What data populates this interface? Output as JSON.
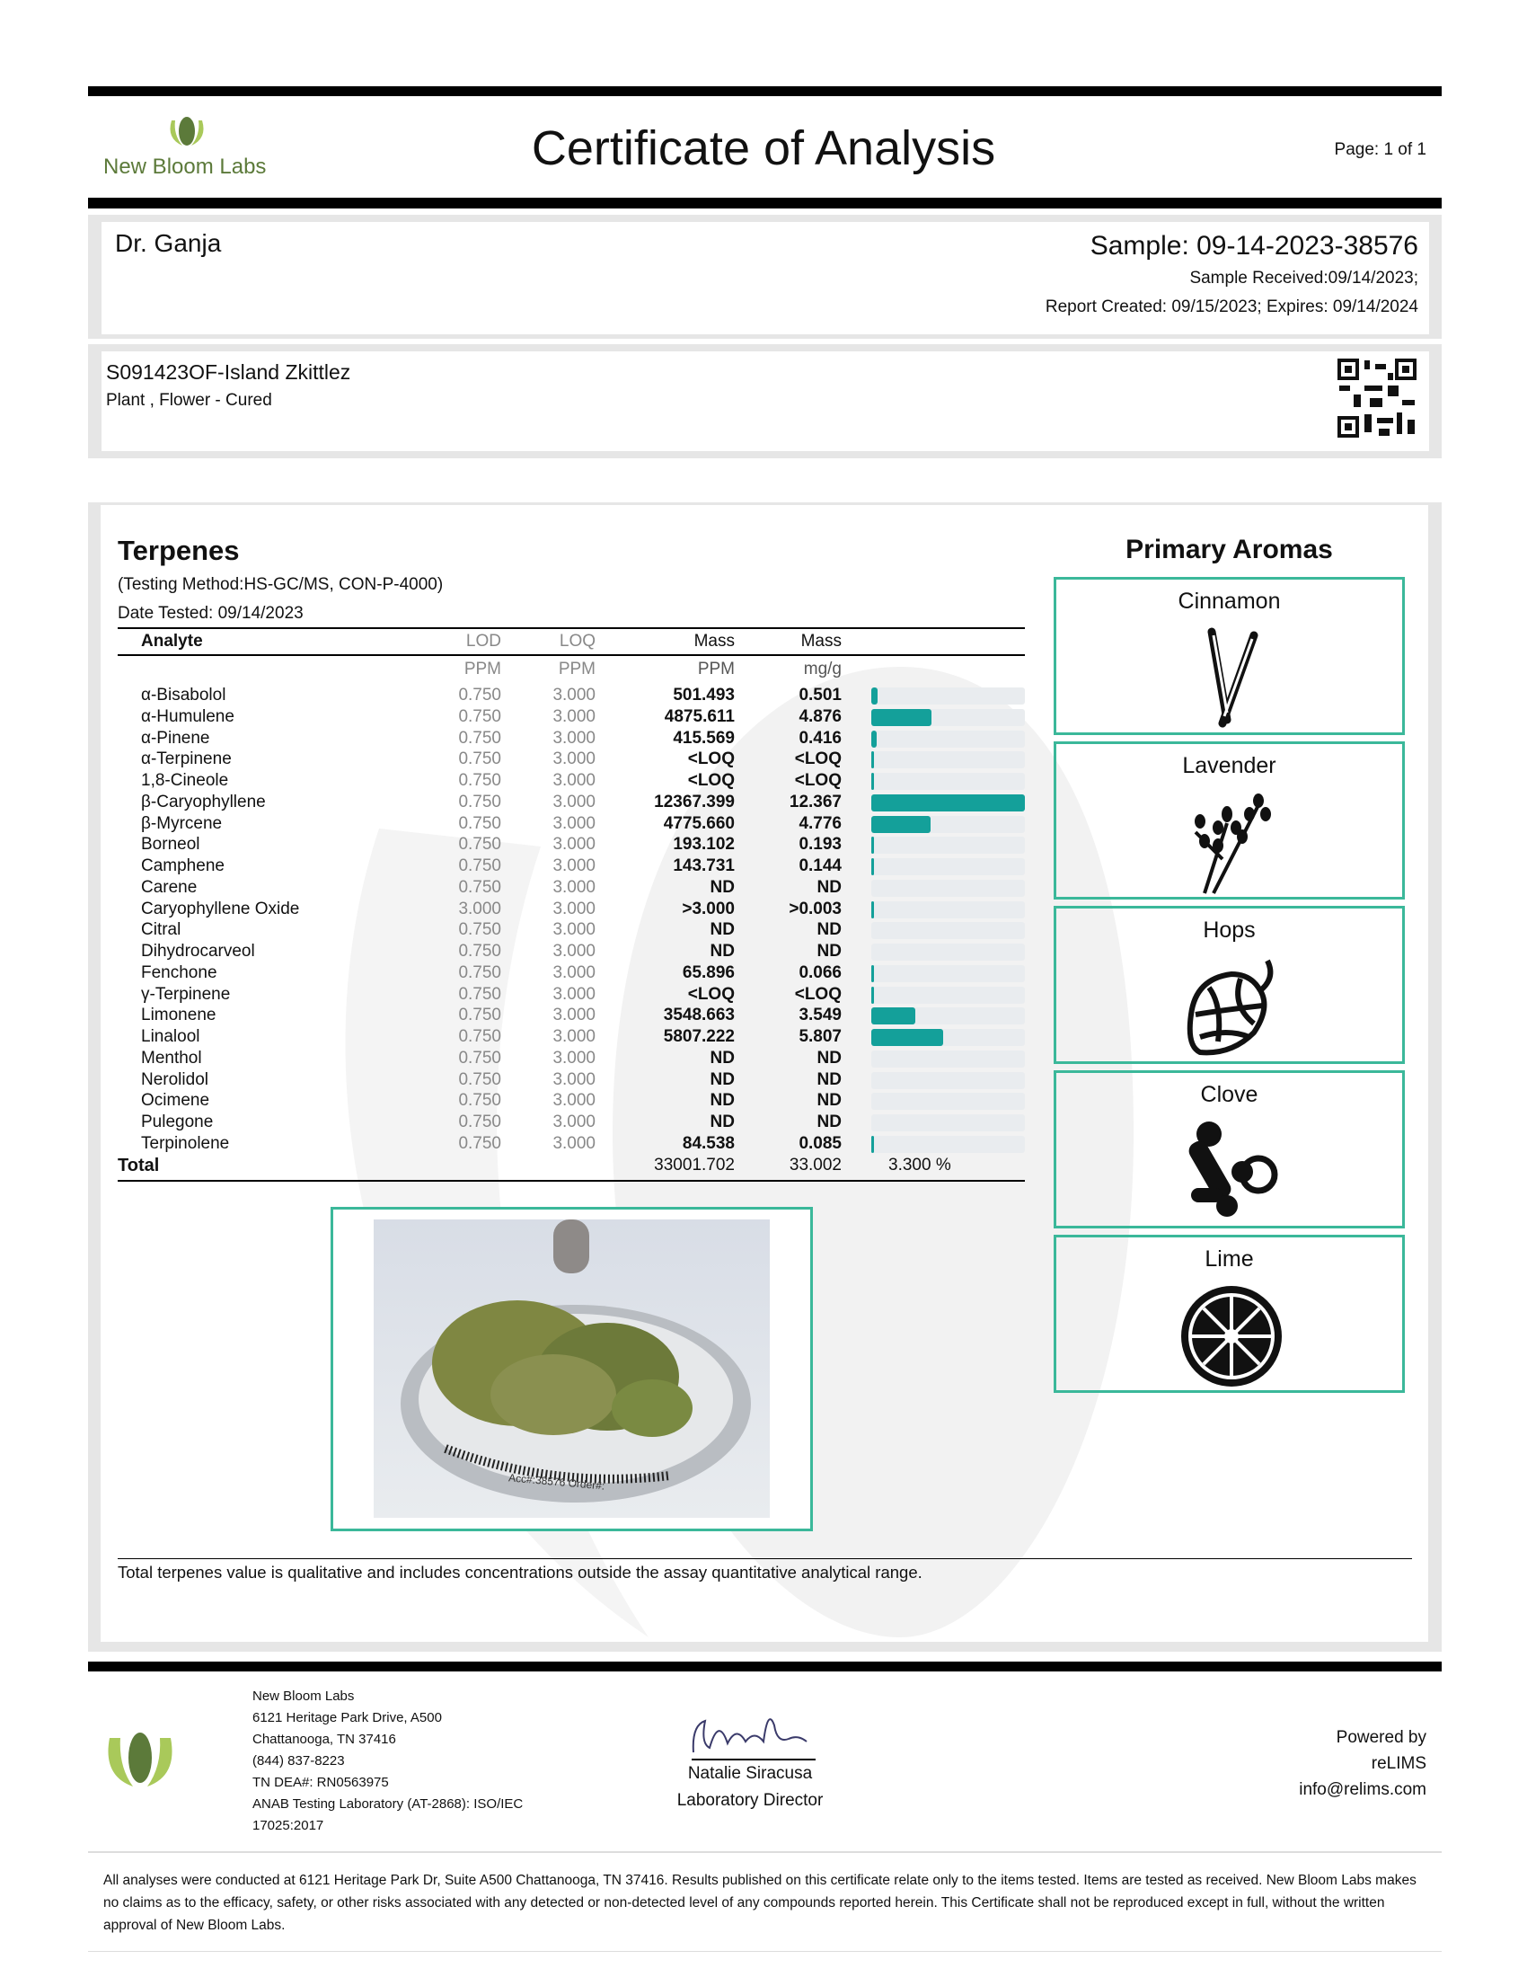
{
  "header": {
    "brand": "New Bloom Labs",
    "title": "Certificate of Analysis",
    "page": "Page: 1 of 1"
  },
  "client": {
    "name": "Dr. Ganja",
    "sample": "Sample: 09-14-2023-38576",
    "received": "Sample Received:09/14/2023;",
    "report": "Report Created: 09/15/2023; Expires: 09/14/2024"
  },
  "product": {
    "name": "S091423OF-Island Zkittlez",
    "type": "Plant , Flower - Cured"
  },
  "terpenes": {
    "title": "Terpenes",
    "method": "(Testing Method:HS-GC/MS, CON-P-4000)",
    "date": "Date Tested: 09/14/2023",
    "headers": {
      "analyte": "Analyte",
      "lod": "LOD",
      "loq": "LOQ",
      "mass1": "Mass",
      "mass2": "Mass"
    },
    "units": {
      "lod": "PPM",
      "loq": "PPM",
      "mass1": "PPM",
      "mass2": "mg/g"
    },
    "bar_color": "#14a09a",
    "rows": [
      {
        "name": "α-Bisabolol",
        "lod": "0.750",
        "loq": "3.000",
        "ppm": "501.493",
        "mg": "0.501",
        "level": 0.501
      },
      {
        "name": "α-Humulene",
        "lod": "0.750",
        "loq": "3.000",
        "ppm": "4875.611",
        "mg": "4.876",
        "level": 4.876
      },
      {
        "name": "α-Pinene",
        "lod": "0.750",
        "loq": "3.000",
        "ppm": "415.569",
        "mg": "0.416",
        "level": 0.416
      },
      {
        "name": "α-Terpinene",
        "lod": "0.750",
        "loq": "3.000",
        "ppm": "<LOQ",
        "mg": "<LOQ",
        "level": 0.001
      },
      {
        "name": "1,8-Cineole",
        "lod": "0.750",
        "loq": "3.000",
        "ppm": "<LOQ",
        "mg": "<LOQ",
        "level": 0.001
      },
      {
        "name": "β-Caryophyllene",
        "lod": "0.750",
        "loq": "3.000",
        "ppm": "12367.399",
        "mg": "12.367",
        "level": 12.367
      },
      {
        "name": "β-Myrcene",
        "lod": "0.750",
        "loq": "3.000",
        "ppm": "4775.660",
        "mg": "4.776",
        "level": 4.776
      },
      {
        "name": "Borneol",
        "lod": "0.750",
        "loq": "3.000",
        "ppm": "193.102",
        "mg": "0.193",
        "level": 0.193
      },
      {
        "name": "Camphene",
        "lod": "0.750",
        "loq": "3.000",
        "ppm": "143.731",
        "mg": "0.144",
        "level": 0.144
      },
      {
        "name": "Carene",
        "lod": "0.750",
        "loq": "3.000",
        "ppm": "ND",
        "mg": "ND",
        "level": 0
      },
      {
        "name": "Caryophyllene Oxide",
        "lod": "3.000",
        "loq": "3.000",
        "ppm": ">3.000",
        "mg": ">0.003",
        "level": 0.003
      },
      {
        "name": "Citral",
        "lod": "0.750",
        "loq": "3.000",
        "ppm": "ND",
        "mg": "ND",
        "level": 0
      },
      {
        "name": "Dihydrocarveol",
        "lod": "0.750",
        "loq": "3.000",
        "ppm": "ND",
        "mg": "ND",
        "level": 0
      },
      {
        "name": "Fenchone",
        "lod": "0.750",
        "loq": "3.000",
        "ppm": "65.896",
        "mg": "0.066",
        "level": 0.066
      },
      {
        "name": "γ-Terpinene",
        "lod": "0.750",
        "loq": "3.000",
        "ppm": "<LOQ",
        "mg": "<LOQ",
        "level": 0.001
      },
      {
        "name": "Limonene",
        "lod": "0.750",
        "loq": "3.000",
        "ppm": "3548.663",
        "mg": "3.549",
        "level": 3.549
      },
      {
        "name": "Linalool",
        "lod": "0.750",
        "loq": "3.000",
        "ppm": "5807.222",
        "mg": "5.807",
        "level": 5.807
      },
      {
        "name": "Menthol",
        "lod": "0.750",
        "loq": "3.000",
        "ppm": "ND",
        "mg": "ND",
        "level": 0
      },
      {
        "name": "Nerolidol",
        "lod": "0.750",
        "loq": "3.000",
        "ppm": "ND",
        "mg": "ND",
        "level": 0
      },
      {
        "name": "Ocimene",
        "lod": "0.750",
        "loq": "3.000",
        "ppm": "ND",
        "mg": "ND",
        "level": 0
      },
      {
        "name": "Pulegone",
        "lod": "0.750",
        "loq": "3.000",
        "ppm": "ND",
        "mg": "ND",
        "level": 0
      },
      {
        "name": "Terpinolene",
        "lod": "0.750",
        "loq": "3.000",
        "ppm": "84.538",
        "mg": "0.085",
        "level": 0.085
      }
    ],
    "total": {
      "label": "Total",
      "ppm": "33001.702",
      "mg": "33.002",
      "percent": "3.300 %"
    },
    "note": "Total terpenes value is qualitative and includes concentrations outside the assay quantitative analytical range."
  },
  "aromas": {
    "title": "Primary Aromas",
    "items": [
      {
        "label": "Cinnamon",
        "icon": "cinnamon-icon"
      },
      {
        "label": "Lavender",
        "icon": "lavender-icon"
      },
      {
        "label": "Hops",
        "icon": "hops-icon"
      },
      {
        "label": "Clove",
        "icon": "clove-icon"
      },
      {
        "label": "Lime",
        "icon": "lime-icon"
      }
    ],
    "border_color": "#3bb89a"
  },
  "photo": {
    "label_text": "Acc#:38576 Order#:"
  },
  "footer": {
    "address": [
      "New Bloom Labs",
      "6121 Heritage Park Drive, A500",
      "Chattanooga, TN 37416",
      "(844) 837-8223",
      "TN DEA#: RN0563975",
      "ANAB Testing Laboratory (AT-2868): ISO/IEC",
      "17025:2017"
    ],
    "signer": "Natalie Siracusa",
    "signer_title": "Laboratory Director",
    "powered": [
      "Powered by",
      "reLIMS",
      "info@relims.com"
    ],
    "disclaimer": "All analyses were conducted at 6121 Heritage Park Dr, Suite A500 Chattanooga, TN 37416. Results published on this certificate relate only to the items tested. Items are tested as received. New Bloom Labs makes no claims as to the efficacy, safety, or other risks associated with any detected or non-detected level of any compounds reported herein. This Certificate shall not be reproduced except in full, without the written approval of New Bloom Labs."
  }
}
